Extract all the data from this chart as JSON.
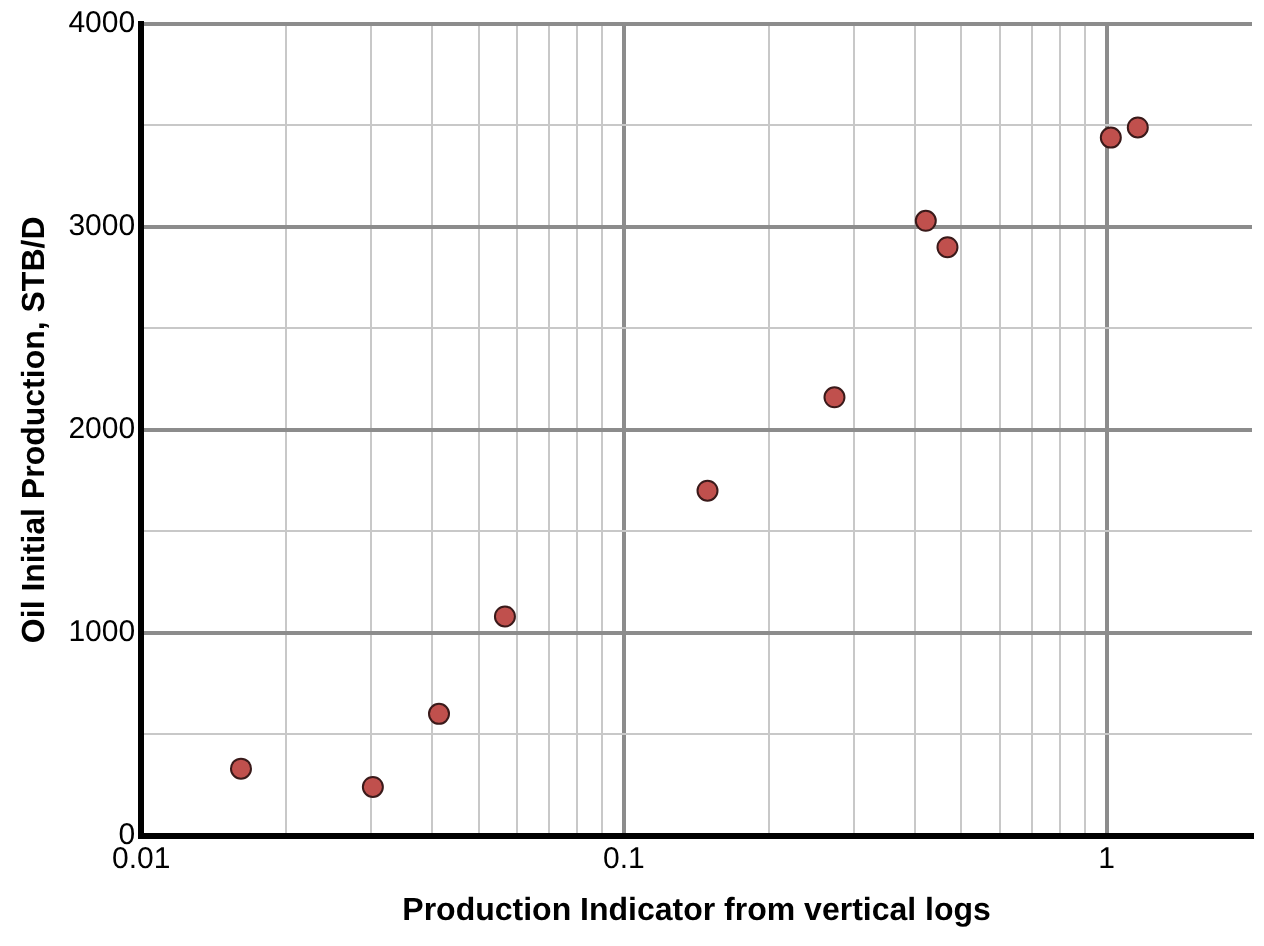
{
  "chart_data": {
    "type": "scatter",
    "xlabel": "Production Indicator from vertical logs",
    "ylabel": "Oil Initial Production, STB/D",
    "log": "x",
    "grid": true,
    "marker": "circle",
    "legend": false,
    "x": [
      0.0161,
      0.0302,
      0.0414,
      0.0567,
      0.149,
      0.273,
      0.422,
      0.468,
      1.02,
      1.16
    ],
    "series": [
      {
        "color": "#c0504d",
        "values": [
          330,
          240,
          600,
          1080,
          1700,
          2160,
          3030,
          2900,
          3440,
          3490
        ]
      }
    ],
    "xlim": [
      0.01,
      2
    ],
    "xticks": [
      0.01,
      {
        "value": 0.02,
        "label": null
      },
      {
        "value": 0.03,
        "label": null
      },
      {
        "value": 0.04,
        "label": null
      },
      {
        "value": 0.05,
        "label": null
      },
      {
        "value": 0.06,
        "label": null
      },
      {
        "value": 0.07,
        "label": null
      },
      {
        "value": 0.08,
        "label": null
      },
      {
        "value": 0.09,
        "label": null
      },
      0.1,
      {
        "value": 0.2,
        "label": null
      },
      {
        "value": 0.3,
        "label": null
      },
      {
        "value": 0.4,
        "label": null
      },
      {
        "value": 0.5,
        "label": null
      },
      {
        "value": 0.6,
        "label": null
      },
      {
        "value": 0.7,
        "label": null
      },
      {
        "value": 0.8,
        "label": null
      },
      {
        "value": 0.9,
        "label": null
      },
      1
    ],
    "ylim": [
      0,
      4000
    ],
    "yticks": [
      0,
      {
        "value": 500,
        "label": null
      },
      1000,
      {
        "value": 1500,
        "label": null
      },
      2000,
      {
        "value": 2500,
        "label": null
      },
      3000,
      {
        "value": 3500,
        "label": null
      },
      4000
    ]
  }
}
